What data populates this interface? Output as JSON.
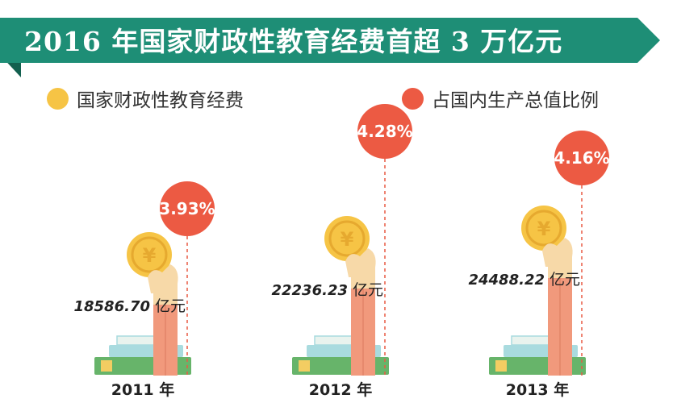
{
  "title": "2016 年国家财政性教育经费首超 3 万亿元",
  "legend": {
    "expenditure": {
      "label": "国家财政性教育经费",
      "color": "#f6c445"
    },
    "ratio": {
      "label": "占国内生产总值比例",
      "color": "#ec5a43"
    }
  },
  "colors": {
    "banner": "#1e8e76",
    "banner_dark": "#13604f",
    "arm": "#f1997c",
    "hand": "#f7d9a8",
    "book_green": "#67b46a",
    "book_blue": "#a9dbdf",
    "book_yellow": "#f3cd62",
    "dashed": "#e85a44"
  },
  "chart_data": {
    "type": "bar",
    "categories": [
      "2011 年",
      "2012 年",
      "2013 年"
    ],
    "series": [
      {
        "name": "国家财政性教育经费",
        "unit": "亿元",
        "values": [
          18586.7,
          22236.23,
          24488.22
        ],
        "labels": [
          "18586.70",
          "22236.23",
          "24488.22"
        ]
      },
      {
        "name": "占国内生产总值比例",
        "unit": "%",
        "values": [
          3.93,
          4.28,
          4.16
        ],
        "labels": [
          "3.93%",
          "4.28%",
          "4.16%"
        ]
      }
    ]
  }
}
